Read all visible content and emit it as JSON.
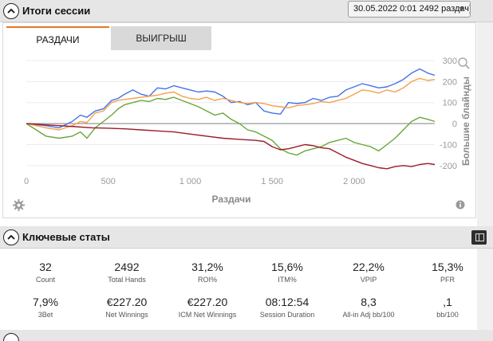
{
  "session": {
    "title": "Итоги сессии",
    "selected": "30.05.2022 0:01 2492 раздач)",
    "select_arrow": "chevron-down-icon"
  },
  "tabs": [
    {
      "label": "РАЗДАЧИ",
      "active": true
    },
    {
      "label": "ВЫИГРЫШ",
      "active": false
    }
  ],
  "colors": {
    "blue": "#4472e8",
    "orange": "#f5a04a",
    "green": "#6aa53a",
    "darkred": "#9b1c26",
    "zero_line": "#999999"
  },
  "chart_data": {
    "type": "line",
    "xlabel": "Раздачи",
    "ylabel": "Большие блайнды",
    "xlim": [
      0,
      2492
    ],
    "ylim": [
      -250,
      300
    ],
    "x_ticks": [
      "0",
      "500",
      "1 000",
      "1 500",
      "2 000"
    ],
    "y_ticks": [
      "300",
      "200",
      "100",
      "0",
      "-100",
      "-200"
    ],
    "grid": "horizontal",
    "legend": "none",
    "series": [
      {
        "color": "blue",
        "points": [
          [
            0,
            0
          ],
          [
            60,
            -5
          ],
          [
            120,
            -10
          ],
          [
            200,
            -20
          ],
          [
            280,
            10
          ],
          [
            330,
            40
          ],
          [
            370,
            30
          ],
          [
            420,
            60
          ],
          [
            470,
            70
          ],
          [
            520,
            110
          ],
          [
            560,
            120
          ],
          [
            600,
            140
          ],
          [
            650,
            160
          ],
          [
            700,
            140
          ],
          [
            750,
            130
          ],
          [
            800,
            170
          ],
          [
            850,
            165
          ],
          [
            900,
            180
          ],
          [
            950,
            170
          ],
          [
            1000,
            160
          ],
          [
            1050,
            150
          ],
          [
            1100,
            155
          ],
          [
            1150,
            150
          ],
          [
            1200,
            130
          ],
          [
            1250,
            100
          ],
          [
            1300,
            105
          ],
          [
            1350,
            90
          ],
          [
            1400,
            100
          ],
          [
            1450,
            60
          ],
          [
            1500,
            50
          ],
          [
            1550,
            45
          ],
          [
            1600,
            100
          ],
          [
            1650,
            95
          ],
          [
            1700,
            100
          ],
          [
            1750,
            120
          ],
          [
            1800,
            110
          ],
          [
            1850,
            125
          ],
          [
            1900,
            130
          ],
          [
            1950,
            160
          ],
          [
            2000,
            175
          ],
          [
            2050,
            190
          ],
          [
            2100,
            180
          ],
          [
            2150,
            170
          ],
          [
            2200,
            175
          ],
          [
            2250,
            190
          ],
          [
            2300,
            210
          ],
          [
            2350,
            240
          ],
          [
            2400,
            260
          ],
          [
            2450,
            240
          ],
          [
            2492,
            230
          ]
        ]
      },
      {
        "color": "orange",
        "points": [
          [
            0,
            0
          ],
          [
            60,
            -10
          ],
          [
            120,
            -20
          ],
          [
            200,
            -30
          ],
          [
            280,
            -10
          ],
          [
            330,
            10
          ],
          [
            370,
            5
          ],
          [
            420,
            50
          ],
          [
            470,
            60
          ],
          [
            520,
            100
          ],
          [
            560,
            110
          ],
          [
            600,
            115
          ],
          [
            650,
            120
          ],
          [
            700,
            125
          ],
          [
            750,
            130
          ],
          [
            800,
            135
          ],
          [
            850,
            145
          ],
          [
            900,
            150
          ],
          [
            950,
            130
          ],
          [
            1000,
            120
          ],
          [
            1050,
            115
          ],
          [
            1100,
            125
          ],
          [
            1150,
            110
          ],
          [
            1200,
            120
          ],
          [
            1250,
            110
          ],
          [
            1300,
            100
          ],
          [
            1350,
            95
          ],
          [
            1400,
            100
          ],
          [
            1450,
            95
          ],
          [
            1500,
            85
          ],
          [
            1550,
            80
          ],
          [
            1600,
            75
          ],
          [
            1650,
            85
          ],
          [
            1700,
            90
          ],
          [
            1750,
            95
          ],
          [
            1800,
            105
          ],
          [
            1850,
            100
          ],
          [
            1900,
            110
          ],
          [
            1950,
            120
          ],
          [
            2000,
            140
          ],
          [
            2050,
            160
          ],
          [
            2100,
            155
          ],
          [
            2150,
            145
          ],
          [
            2200,
            160
          ],
          [
            2250,
            150
          ],
          [
            2300,
            170
          ],
          [
            2350,
            200
          ],
          [
            2400,
            215
          ],
          [
            2450,
            205
          ],
          [
            2492,
            210
          ]
        ]
      },
      {
        "color": "green",
        "points": [
          [
            0,
            0
          ],
          [
            60,
            -30
          ],
          [
            120,
            -60
          ],
          [
            200,
            -70
          ],
          [
            280,
            -60
          ],
          [
            330,
            -40
          ],
          [
            370,
            -70
          ],
          [
            420,
            -20
          ],
          [
            470,
            10
          ],
          [
            520,
            40
          ],
          [
            560,
            70
          ],
          [
            600,
            90
          ],
          [
            650,
            100
          ],
          [
            700,
            110
          ],
          [
            750,
            105
          ],
          [
            800,
            120
          ],
          [
            850,
            115
          ],
          [
            900,
            125
          ],
          [
            950,
            110
          ],
          [
            1000,
            95
          ],
          [
            1050,
            80
          ],
          [
            1100,
            60
          ],
          [
            1150,
            40
          ],
          [
            1200,
            50
          ],
          [
            1250,
            20
          ],
          [
            1300,
            0
          ],
          [
            1350,
            -30
          ],
          [
            1400,
            -40
          ],
          [
            1450,
            -60
          ],
          [
            1500,
            -80
          ],
          [
            1550,
            -120
          ],
          [
            1600,
            -140
          ],
          [
            1650,
            -150
          ],
          [
            1700,
            -130
          ],
          [
            1750,
            -120
          ],
          [
            1800,
            -110
          ],
          [
            1850,
            -90
          ],
          [
            1900,
            -80
          ],
          [
            1950,
            -70
          ],
          [
            2000,
            -90
          ],
          [
            2050,
            -100
          ],
          [
            2100,
            -110
          ],
          [
            2150,
            -130
          ],
          [
            2200,
            -100
          ],
          [
            2250,
            -70
          ],
          [
            2300,
            -30
          ],
          [
            2350,
            10
          ],
          [
            2400,
            30
          ],
          [
            2450,
            20
          ],
          [
            2492,
            10
          ]
        ]
      },
      {
        "color": "darkred",
        "points": [
          [
            0,
            0
          ],
          [
            100,
            -5
          ],
          [
            200,
            -10
          ],
          [
            300,
            -15
          ],
          [
            400,
            -20
          ],
          [
            500,
            -22
          ],
          [
            600,
            -25
          ],
          [
            700,
            -30
          ],
          [
            800,
            -35
          ],
          [
            900,
            -40
          ],
          [
            1000,
            -50
          ],
          [
            1100,
            -60
          ],
          [
            1200,
            -70
          ],
          [
            1300,
            -75
          ],
          [
            1400,
            -80
          ],
          [
            1450,
            -85
          ],
          [
            1500,
            -110
          ],
          [
            1550,
            -125
          ],
          [
            1600,
            -120
          ],
          [
            1650,
            -110
          ],
          [
            1700,
            -100
          ],
          [
            1750,
            -105
          ],
          [
            1800,
            -115
          ],
          [
            1850,
            -120
          ],
          [
            1900,
            -140
          ],
          [
            1950,
            -160
          ],
          [
            2000,
            -175
          ],
          [
            2050,
            -190
          ],
          [
            2100,
            -200
          ],
          [
            2150,
            -210
          ],
          [
            2200,
            -215
          ],
          [
            2250,
            -205
          ],
          [
            2300,
            -200
          ],
          [
            2350,
            -205
          ],
          [
            2400,
            -195
          ],
          [
            2450,
            -190
          ],
          [
            2492,
            -195
          ]
        ]
      }
    ]
  },
  "key_stats": {
    "title": "Ключевые статы",
    "items": [
      {
        "value": "32",
        "label": "Count"
      },
      {
        "value": "2492",
        "label": "Total Hands"
      },
      {
        "value": "31,2%",
        "label": "ROI%"
      },
      {
        "value": "15,6%",
        "label": "ITM%"
      },
      {
        "value": "22,2%",
        "label": "VPIP"
      },
      {
        "value": "15,3%",
        "label": "PFR"
      },
      {
        "value": "7,9%",
        "label": "3Bet"
      },
      {
        "value": "€227.20",
        "label": "Net Winnings"
      },
      {
        "value": "€227.20",
        "label": "ICM Net Winnings"
      },
      {
        "value": "08:12:54",
        "label": "Session Duration"
      },
      {
        "value": "8,3",
        "label": "All-in Adj bb/100"
      },
      {
        "value": ",1",
        "label": "bb/100"
      }
    ]
  }
}
